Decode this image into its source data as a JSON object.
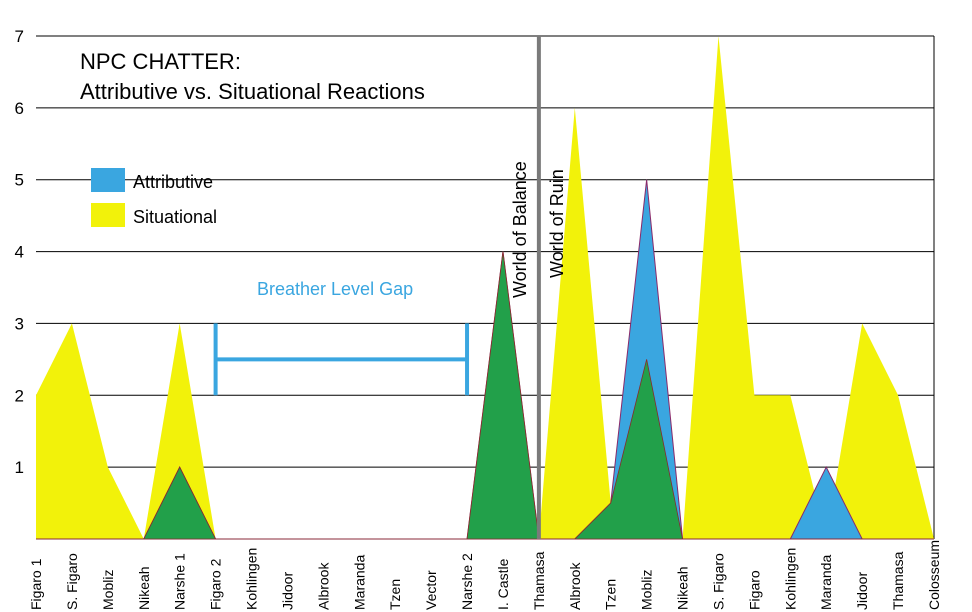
{
  "chart_data": {
    "type": "area",
    "title_line1": "NPC CHATTER:",
    "title_line2": "Attributive vs. Situational Reactions",
    "xlabel": "",
    "ylabel": "",
    "ylim": [
      0,
      7
    ],
    "yticks": [
      "1",
      "2",
      "3",
      "4",
      "5",
      "6",
      "7"
    ],
    "grid": true,
    "legend_position": "top-left",
    "categories": [
      "Figaro 1",
      "S. Figaro",
      "Mobliz",
      "Nikeah",
      "Narshe 1",
      "Figaro 2",
      "Kohlingen",
      "Jidoor",
      "Albrook",
      "Maranda",
      "Tzen",
      "Vector",
      "Narshe 2",
      "I. Castle",
      "Thamasa",
      "Albrook",
      "Tzen",
      "Mobliz",
      "Nikeah",
      "S. Figaro",
      "Figaro",
      "Kohlingen",
      "Maranda",
      "Jidoor",
      "Thamasa",
      "Colosseum"
    ],
    "series": [
      {
        "name": "Attributive",
        "color": "#3aa6e0",
        "values": [
          0,
          0,
          0,
          0,
          1,
          0,
          0,
          0,
          0,
          0,
          0,
          0,
          0,
          4,
          0,
          0,
          0.5,
          5,
          0,
          0,
          0,
          0,
          1,
          0,
          0,
          0
        ]
      },
      {
        "name": "Situational",
        "color": "#f2f20a",
        "values": [
          2,
          3,
          1,
          0,
          3,
          0,
          0,
          0,
          0,
          0,
          0,
          0,
          0,
          4,
          0,
          6,
          0.5,
          2.5,
          0,
          7,
          2,
          2,
          0,
          3,
          2,
          0
        ]
      }
    ],
    "overlap_color": "#22a04a",
    "divider_label_left": "World of Balance",
    "divider_label_right": "World of Ruin",
    "bracket_label": "Breather Level Gap"
  }
}
